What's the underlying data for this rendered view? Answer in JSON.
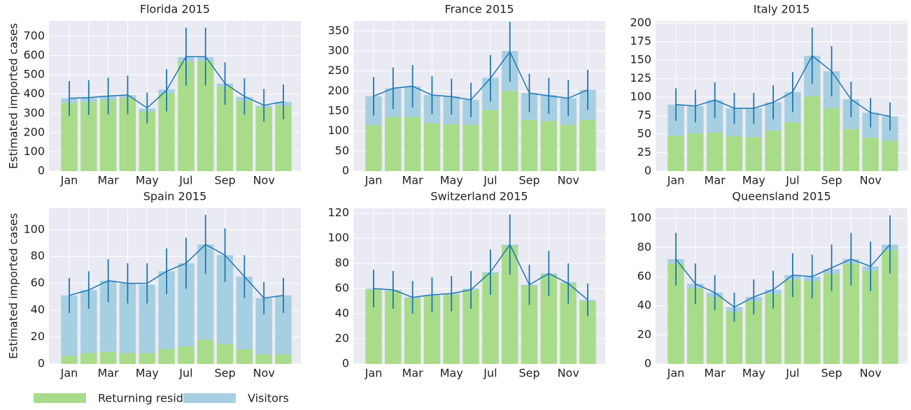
{
  "chart_data": [
    {
      "type": "bar",
      "title": "Florida 2015",
      "ylabel": "Estimated imported cases",
      "categories": [
        "Jan",
        null,
        "Mar",
        null,
        "May",
        null,
        "Jul",
        null,
        "Sep",
        null,
        "Nov",
        null
      ],
      "series": [
        {
          "name": "Returning residents",
          "color": "#a8dc8a",
          "values": [
            355,
            360,
            370,
            380,
            310,
            405,
            570,
            570,
            440,
            365,
            330,
            340
          ]
        },
        {
          "name": "Visitors",
          "color": "#a7cfe2",
          "values": [
            23,
            20,
            20,
            15,
            15,
            20,
            22,
            22,
            15,
            20,
            10,
            20
          ]
        }
      ],
      "line": {
        "color": "#1f77b4",
        "values": [
          378,
          382,
          390,
          396,
          328,
          420,
          595,
          595,
          455,
          388,
          342,
          360
        ],
        "errors": [
          90,
          90,
          95,
          100,
          80,
          110,
          150,
          150,
          110,
          95,
          85,
          90
        ]
      },
      "ylim": [
        0,
        780
      ],
      "yticks": [
        0,
        100,
        200,
        300,
        400,
        500,
        600,
        700
      ],
      "grid": true
    },
    {
      "type": "bar",
      "title": "France 2015",
      "categories": [
        "Jan",
        null,
        "Mar",
        null,
        "May",
        null,
        "Jul",
        null,
        "Sep",
        null,
        "Nov",
        null
      ],
      "series": [
        {
          "color": "#a8dc8a",
          "values": [
            115,
            135,
            135,
            120,
            117,
            115,
            153,
            200,
            128,
            125,
            115,
            128
          ]
        },
        {
          "color": "#a7cfe2",
          "values": [
            72,
            72,
            77,
            70,
            70,
            63,
            80,
            100,
            67,
            65,
            67,
            75
          ]
        }
      ],
      "line": {
        "color": "#1f77b4",
        "values": [
          187,
          207,
          212,
          190,
          186,
          178,
          232,
          298,
          195,
          188,
          182,
          203
        ],
        "errors": [
          48,
          52,
          53,
          47,
          45,
          43,
          58,
          75,
          48,
          45,
          45,
          50
        ]
      },
      "ylim": [
        0,
        375
      ],
      "yticks": [
        0,
        50,
        100,
        150,
        200,
        250,
        300,
        350
      ],
      "grid": true
    },
    {
      "type": "bar",
      "title": "Italy 2015",
      "categories": [
        "Jan",
        null,
        "Mar",
        null,
        "May",
        null,
        "Jul",
        null,
        "Sep",
        null,
        "Nov",
        null
      ],
      "series": [
        {
          "color": "#a8dc8a",
          "values": [
            48,
            51,
            52,
            47,
            46,
            55,
            66,
            101,
            85,
            57,
            45,
            41
          ]
        },
        {
          "color": "#a7cfe2",
          "values": [
            42,
            37,
            44,
            38,
            39,
            38,
            41,
            55,
            50,
            40,
            34,
            33
          ]
        }
      ],
      "line": {
        "color": "#1f77b4",
        "values": [
          90,
          88,
          96,
          85,
          85,
          93,
          107,
          156,
          135,
          97,
          79,
          74
        ],
        "errors": [
          22,
          22,
          24,
          21,
          21,
          23,
          27,
          38,
          34,
          24,
          20,
          19
        ]
      },
      "ylim": [
        0,
        203
      ],
      "yticks": [
        0,
        25,
        50,
        75,
        100,
        125,
        150,
        175,
        200
      ],
      "grid": true
    },
    {
      "type": "bar",
      "title": "Spain 2015",
      "ylabel": "Estimated imported cases",
      "categories": [
        "Jan",
        null,
        "Mar",
        null,
        "May",
        null,
        "Jul",
        null,
        "Sep",
        null,
        "Nov",
        null
      ],
      "series": [
        {
          "color": "#a8dc8a",
          "values": [
            6,
            8,
            9,
            8,
            8,
            11,
            13,
            18,
            15,
            11,
            7,
            7
          ]
        },
        {
          "color": "#a7cfe2",
          "values": [
            45,
            47,
            53,
            52,
            51,
            58,
            62,
            71,
            66,
            54,
            42,
            44
          ]
        }
      ],
      "line": {
        "color": "#1f77b4",
        "values": [
          51,
          55,
          62,
          60,
          60,
          69,
          75,
          89,
          81,
          65,
          49,
          51
        ],
        "errors": [
          13,
          14,
          16,
          15,
          15,
          17,
          19,
          22,
          20,
          16,
          12,
          13
        ]
      },
      "ylim": [
        0,
        116
      ],
      "yticks": [
        0,
        20,
        40,
        60,
        80,
        100
      ],
      "grid": true
    },
    {
      "type": "bar",
      "title": "Switzerland 2015",
      "categories": [
        "Jan",
        null,
        "Mar",
        null,
        "May",
        null,
        "Jul",
        null,
        "Sep",
        null,
        "Nov",
        null
      ],
      "series": [
        {
          "color": "#a8dc8a",
          "values": [
            59,
            58,
            52,
            54,
            55,
            59,
            72,
            94,
            62,
            71,
            64,
            50
          ]
        },
        {
          "color": "#a7cfe2",
          "values": [
            1,
            1,
            1,
            1,
            1,
            1,
            1,
            1,
            1,
            1,
            1,
            1
          ]
        }
      ],
      "line": {
        "color": "#1f77b4",
        "values": [
          60,
          59,
          53,
          55,
          56,
          59,
          73,
          95,
          63,
          72,
          64,
          51
        ],
        "errors": [
          15,
          15,
          13,
          14,
          14,
          15,
          18,
          24,
          16,
          18,
          16,
          13
        ]
      },
      "ylim": [
        0,
        124
      ],
      "yticks": [
        0,
        20,
        40,
        60,
        80,
        100,
        120
      ],
      "grid": true
    },
    {
      "type": "bar",
      "title": "Queensland 2015",
      "categories": [
        "Jan",
        null,
        "Mar",
        null,
        "May",
        null,
        "Jul",
        null,
        "Sep",
        null,
        "Nov",
        null
      ],
      "series": [
        {
          "color": "#a8dc8a",
          "values": [
            69,
            52,
            46,
            36,
            43,
            48,
            58,
            57,
            62,
            69,
            64,
            78
          ]
        },
        {
          "color": "#a7cfe2",
          "values": [
            3,
            3,
            3,
            3,
            3,
            3,
            3,
            3,
            3,
            3,
            3,
            4
          ]
        }
      ],
      "line": {
        "color": "#1f77b4",
        "values": [
          72,
          55,
          49,
          39,
          46,
          51,
          61,
          60,
          66,
          72,
          67,
          82
        ],
        "errors": [
          18,
          14,
          12,
          10,
          12,
          13,
          15,
          15,
          16,
          18,
          17,
          20
        ]
      },
      "ylim": [
        0,
        107
      ],
      "yticks": [
        0,
        20,
        40,
        60,
        80,
        100
      ],
      "grid": true
    }
  ]
}
